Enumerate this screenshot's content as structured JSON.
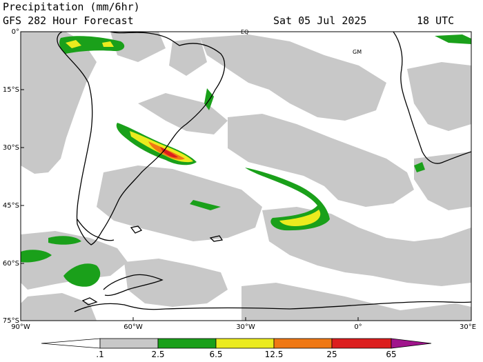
{
  "header": {
    "title": "Precipitation (mm/6hr)",
    "subtitle": "GFS 282 Hour Forecast",
    "date": "Sat 05 Jul 2025",
    "time": "18 UTC"
  },
  "map": {
    "lat_labels": [
      "0°",
      "15°S",
      "30°S",
      "45°S",
      "60°S",
      "75°S"
    ],
    "lon_labels": [
      "90°W",
      "60°W",
      "30°W",
      "0°",
      "30°E"
    ],
    "markers": {
      "equator": "EQ",
      "greenwich": "GM"
    }
  },
  "colorbar": {
    "labels": [
      ".1",
      "2.5",
      "6.5",
      "12.5",
      "25",
      "65"
    ],
    "colors": {
      "light": "#c8c8c8",
      "moderate": "#1aa01a",
      "heavy": "#ebeb1e",
      "very_heavy": "#f07814",
      "intense": "#dc1e1e",
      "extreme": "#a0148c"
    }
  }
}
